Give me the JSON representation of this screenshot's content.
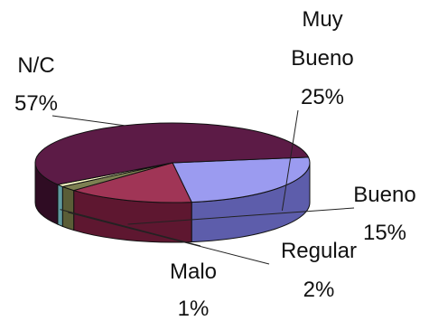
{
  "chart_data": {
    "type": "pie",
    "title": "",
    "legend": "none",
    "slices": [
      {
        "label": "Muy Bueno",
        "value": 25,
        "display": "25%",
        "color": "#9b9bf0",
        "side_color": "#5d5dab"
      },
      {
        "label": "Bueno",
        "value": 15,
        "display": "15%",
        "color": "#a03556",
        "side_color": "#5e1730"
      },
      {
        "label": "Regular",
        "value": 2,
        "display": "2%",
        "color": "#7d8052",
        "side_color": "#5a5d37"
      },
      {
        "label": "Malo",
        "value": 1,
        "display": "1%",
        "color": "#ffffc8",
        "side_color": "#5f9aa0"
      },
      {
        "label": "N/C",
        "value": 57,
        "display": "57%",
        "color": "#5c1b46",
        "side_color": "#2f0c23"
      }
    ]
  }
}
